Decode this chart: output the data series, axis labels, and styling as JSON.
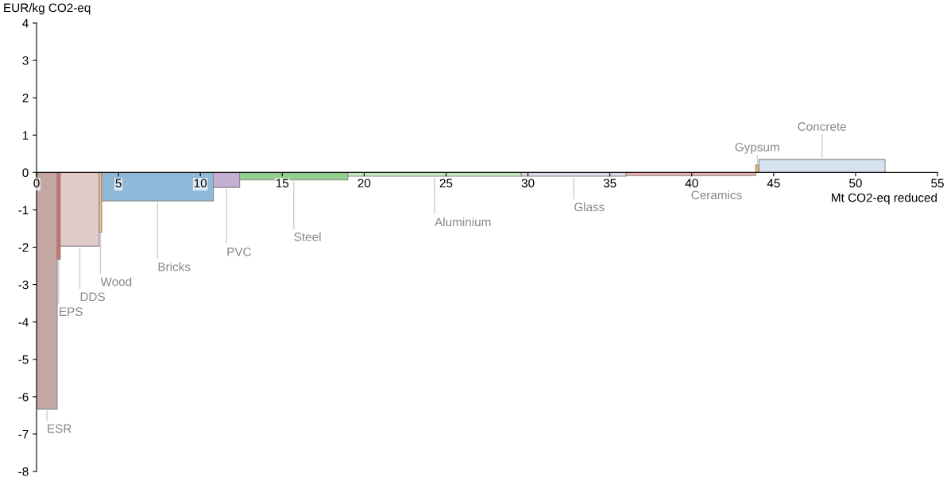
{
  "chart_data": {
    "type": "area",
    "xlabel": "Mt CO2-eq reduced",
    "ylabel": "EUR/kg CO2-eq",
    "xlim": [
      0,
      55
    ],
    "ylim": [
      -8,
      4
    ],
    "xticks": [
      0,
      5,
      10,
      15,
      20,
      25,
      30,
      35,
      40,
      45,
      50,
      55
    ],
    "yticks": [
      -8,
      -7,
      -6,
      -5,
      -4,
      -3,
      -2,
      -1,
      0,
      1,
      2,
      3,
      4
    ],
    "grid": false,
    "series": [
      {
        "name": "ESR",
        "color": "#c4a7a3",
        "x": [
          0,
          1.26
        ],
        "values": [
          -6.33,
          -6.33
        ]
      },
      {
        "name": "EPS",
        "color": "#e06666",
        "x": [
          1.26,
          1.45
        ],
        "values": [
          -2.33,
          -2.33
        ]
      },
      {
        "name": "DDS",
        "color": "#e0cbc8",
        "x": [
          1.45,
          3.83
        ],
        "values": [
          -1.97,
          -1.97
        ]
      },
      {
        "name": "Wood",
        "color": "#ffbb78",
        "x": [
          3.83,
          3.98
        ],
        "values": [
          -1.6,
          -1.6
        ]
      },
      {
        "name": "Bricks",
        "color": "#8fb9d9",
        "x": [
          3.98,
          10.8
        ],
        "values": [
          -0.76,
          -0.76
        ]
      },
      {
        "name": "PVC",
        "color": "#c5b0d5",
        "x": [
          10.8,
          12.4
        ],
        "values": [
          -0.4,
          -0.4
        ]
      },
      {
        "name": "Steel",
        "color": "#93cf8f",
        "x": [
          12.4,
          19.0
        ],
        "values": [
          -0.2,
          -0.2
        ]
      },
      {
        "name": "Aluminium",
        "color": "#c7e9c0",
        "x": [
          19.0,
          29.6
        ],
        "values": [
          -0.1,
          -0.1
        ]
      },
      {
        "name": "Glass",
        "color": "#dadaeb",
        "x": [
          29.6,
          36.0
        ],
        "values": [
          -0.1,
          -0.1
        ]
      },
      {
        "name": "Ceramics",
        "color": "#f4b0b0",
        "x": [
          36.0,
          43.9
        ],
        "values": [
          -0.08,
          -0.08
        ]
      },
      {
        "name": "Gypsum",
        "color": "#fdae6b",
        "x": [
          43.9,
          44.1
        ],
        "values": [
          0.2,
          0.2
        ]
      },
      {
        "name": "Concrete",
        "color": "#d6e2f0",
        "x": [
          44.1,
          51.8
        ],
        "values": [
          0.35,
          0.35
        ]
      }
    ]
  }
}
